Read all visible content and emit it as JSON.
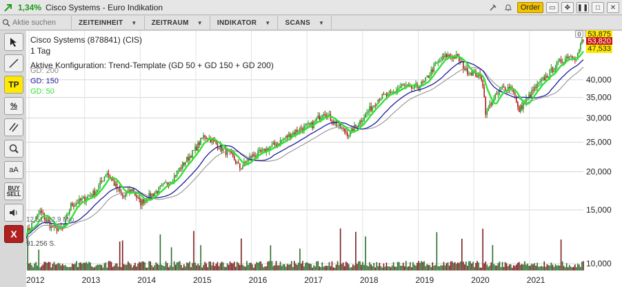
{
  "title_bar": {
    "change": "1,34%",
    "name": "Cisco Systems - Euro Indikation",
    "order_label": "Order",
    "badge": "0"
  },
  "toolbar": {
    "search_placeholder": "Aktie suchen",
    "menus": [
      "ZEITEINHEIT",
      "ZEITRAUM",
      "INDIKATOR",
      "SCANS"
    ]
  },
  "tools": {
    "tp_label": "TP",
    "pct_label": "%",
    "aa_label": "aA",
    "buy_label": "BUY",
    "sell_label": "SELL",
    "x_label": "X"
  },
  "colors": {
    "gd50": "#2fe22f",
    "gd150": "#1a1a9a",
    "gd200": "#9a9a9a",
    "up": "#1c9a1c",
    "down": "#b01818",
    "price_last": "#c81414"
  },
  "chart_data": {
    "type": "line",
    "subtype": "candlestick",
    "title": "Cisco Systems (878841) (CIS)",
    "timeframe": "1 Tag",
    "config": "Aktive Konfiguration: Trend-Template (GD 50 + GD 150 + GD 200)",
    "legend": [
      "GD: 200",
      "GD: 150",
      "GD: 50"
    ],
    "y_scale": "log",
    "y_ticks": [
      "10,000",
      "15,000",
      "20,000",
      "25,000",
      "30,000",
      "35,000",
      "40,000"
    ],
    "y_tick_values": [
      10,
      15,
      20,
      25,
      30,
      35,
      40
    ],
    "ylim": [
      9.5,
      56
    ],
    "x_ticks": [
      "2012",
      "2013",
      "2014",
      "2015",
      "2016",
      "2017",
      "2018",
      "2019",
      "2020",
      "2021"
    ],
    "price_tags": {
      "high": "53,875",
      "last": "53,820",
      "low": "47,533"
    },
    "annotations": [
      "12,51 (12,9 Mio.",
      "91.256 S."
    ],
    "close_points": [
      [
        2011.95,
        12.6
      ],
      [
        2012.2,
        14.8
      ],
      [
        2012.4,
        13.2
      ],
      [
        2012.6,
        12.9
      ],
      [
        2012.75,
        15.5
      ],
      [
        2013.0,
        16.3
      ],
      [
        2013.2,
        17.2
      ],
      [
        2013.4,
        20.0
      ],
      [
        2013.55,
        18.0
      ],
      [
        2013.7,
        16.5
      ],
      [
        2013.85,
        17.6
      ],
      [
        2014.0,
        15.8
      ],
      [
        2014.2,
        16.8
      ],
      [
        2014.4,
        17.8
      ],
      [
        2014.6,
        19.2
      ],
      [
        2014.8,
        21.5
      ],
      [
        2015.0,
        23.8
      ],
      [
        2015.15,
        26.3
      ],
      [
        2015.3,
        25.2
      ],
      [
        2015.5,
        23.5
      ],
      [
        2015.65,
        22.5
      ],
      [
        2015.8,
        20.5
      ],
      [
        2016.0,
        22.5
      ],
      [
        2016.2,
        23.2
      ],
      [
        2016.5,
        25.0
      ],
      [
        2016.7,
        26.5
      ],
      [
        2016.9,
        27.8
      ],
      [
        2017.1,
        28.5
      ],
      [
        2017.3,
        31.5
      ],
      [
        2017.45,
        29.5
      ],
      [
        2017.6,
        27.8
      ],
      [
        2017.75,
        26.5
      ],
      [
        2017.9,
        28.5
      ],
      [
        2018.1,
        31.5
      ],
      [
        2018.3,
        35.0
      ],
      [
        2018.5,
        35.8
      ],
      [
        2018.7,
        38.2
      ],
      [
        2018.9,
        37.5
      ],
      [
        2019.1,
        39.0
      ],
      [
        2019.3,
        44.5
      ],
      [
        2019.5,
        48.0
      ],
      [
        2019.7,
        47.5
      ],
      [
        2019.85,
        43.0
      ],
      [
        2020.0,
        42.0
      ],
      [
        2020.15,
        40.5
      ],
      [
        2020.22,
        30.5
      ],
      [
        2020.3,
        33.5
      ],
      [
        2020.5,
        37.5
      ],
      [
        2020.7,
        37.8
      ],
      [
        2020.8,
        31.5
      ],
      [
        2020.9,
        33.5
      ],
      [
        2021.1,
        37.5
      ],
      [
        2021.3,
        41.0
      ],
      [
        2021.5,
        45.0
      ],
      [
        2021.7,
        48.0
      ],
      [
        2021.85,
        47.5
      ],
      [
        2021.95,
        53.82
      ]
    ]
  }
}
